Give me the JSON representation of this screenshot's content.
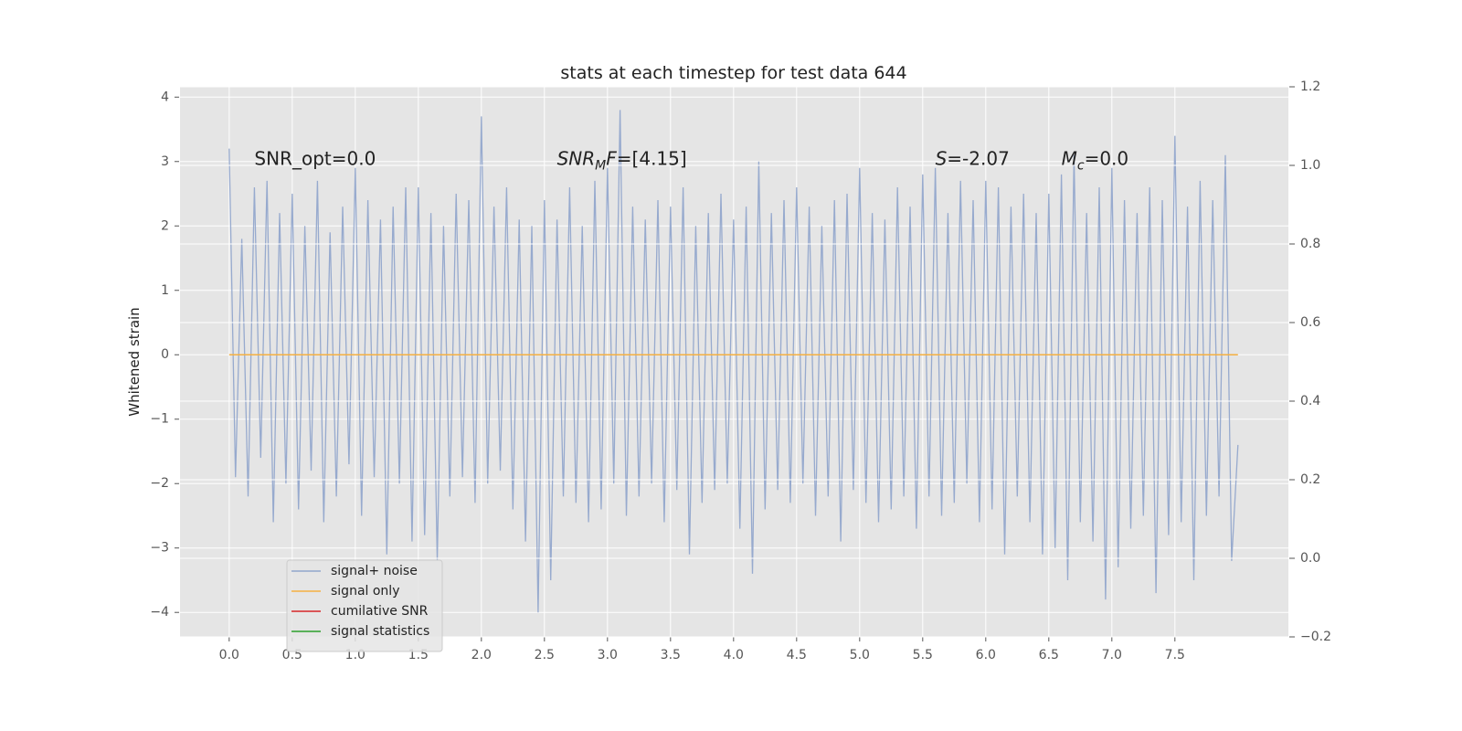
{
  "chart_data": {
    "type": "line",
    "title": "stats at each timestep for test data 644",
    "ylabel": "Whitened strain",
    "xlim": [
      -0.39,
      8.4
    ],
    "ylim": [
      -4.38,
      4.16
    ],
    "y2lim": [
      -0.2,
      1.2
    ],
    "xticks": [
      {
        "value": 0,
        "label": "0.0"
      },
      0.5,
      {
        "value": 1,
        "label": "1.0"
      },
      1.5,
      {
        "value": 2,
        "label": "2.0"
      },
      2.5,
      {
        "value": 3,
        "label": "3.0"
      },
      3.5,
      {
        "value": 4,
        "label": "4.0"
      },
      4.5,
      {
        "value": 5,
        "label": "5.0"
      },
      5.5,
      {
        "value": 6,
        "label": "6.0"
      },
      6.5,
      {
        "value": 7,
        "label": "7.0"
      },
      7.5
    ],
    "yticks": [
      {
        "value": -4,
        "label": "−4"
      },
      {
        "value": -3,
        "label": "−3"
      },
      {
        "value": -2,
        "label": "−2"
      },
      {
        "value": -1,
        "label": "−1"
      },
      0,
      1,
      2,
      3,
      4
    ],
    "y2ticks": [
      {
        "value": -0.2,
        "label": "−0.2"
      },
      {
        "value": 0,
        "label": "0.0"
      },
      0.2,
      0.4,
      0.6,
      0.8,
      {
        "value": 1,
        "label": "1.0"
      },
      1.2
    ],
    "grid": true,
    "legend": "lower left",
    "series": [
      {
        "name": "signal+ noise",
        "color": "#92a6cc",
        "x": [
          0,
          0.05,
          0.1,
          0.15,
          0.2,
          0.25,
          0.3,
          0.35,
          0.4,
          0.45,
          0.5,
          0.55,
          0.6,
          0.65,
          0.7,
          0.75,
          0.8,
          0.85,
          0.9,
          0.95,
          1,
          1.05,
          1.1,
          1.15,
          1.2,
          1.25,
          1.3,
          1.35,
          1.4,
          1.45,
          1.5,
          1.55,
          1.6,
          1.65,
          1.7,
          1.75,
          1.8,
          1.85,
          1.9,
          1.95,
          2,
          2.05,
          2.1,
          2.15,
          2.2,
          2.25,
          2.3,
          2.35,
          2.4,
          2.45,
          2.5,
          2.55,
          2.6,
          2.65,
          2.7,
          2.75,
          2.8,
          2.85,
          2.9,
          2.95,
          3,
          3.05,
          3.1,
          3.15,
          3.2,
          3.25,
          3.3,
          3.35,
          3.4,
          3.45,
          3.5,
          3.55,
          3.6,
          3.65,
          3.7,
          3.75,
          3.8,
          3.85,
          3.9,
          3.95,
          4,
          4.05,
          4.1,
          4.15,
          4.2,
          4.25,
          4.3,
          4.35,
          4.4,
          4.45,
          4.5,
          4.55,
          4.6,
          4.65,
          4.7,
          4.75,
          4.8,
          4.85,
          4.9,
          4.95,
          5,
          5.05,
          5.1,
          5.15,
          5.2,
          5.25,
          5.3,
          5.35,
          5.4,
          5.45,
          5.5,
          5.55,
          5.6,
          5.65,
          5.7,
          5.75,
          5.8,
          5.85,
          5.9,
          5.95,
          6,
          6.05,
          6.1,
          6.15,
          6.2,
          6.25,
          6.3,
          6.35,
          6.4,
          6.45,
          6.5,
          6.55,
          6.6,
          6.65,
          6.7,
          6.75,
          6.8,
          6.85,
          6.9,
          6.95,
          7,
          7.05,
          7.1,
          7.15,
          7.2,
          7.25,
          7.3,
          7.35,
          7.4,
          7.45,
          7.5,
          7.55,
          7.6,
          7.65,
          7.7,
          7.75,
          7.8,
          7.85,
          7.9,
          7.95,
          8
        ],
        "values": [
          3.2,
          -1.9,
          1.8,
          -2.2,
          2.6,
          -1.6,
          2.7,
          -2.6,
          2.2,
          -2.0,
          2.5,
          -2.4,
          2.0,
          -1.8,
          2.7,
          -2.6,
          1.9,
          -2.2,
          2.3,
          -1.7,
          2.9,
          -2.5,
          2.4,
          -1.9,
          2.1,
          -3.1,
          2.3,
          -2.0,
          2.6,
          -2.9,
          2.6,
          -2.8,
          2.2,
          -3.2,
          2.0,
          -2.2,
          2.5,
          -1.9,
          2.4,
          -2.3,
          3.7,
          -2.0,
          2.3,
          -1.8,
          2.6,
          -2.4,
          2.1,
          -2.9,
          2.0,
          -4.0,
          2.4,
          -3.5,
          2.1,
          -2.2,
          2.6,
          -2.3,
          2.0,
          -2.6,
          2.7,
          -2.4,
          2.9,
          -2.0,
          3.8,
          -2.5,
          2.3,
          -2.2,
          2.1,
          -2.0,
          2.4,
          -2.6,
          2.3,
          -2.1,
          2.6,
          -3.1,
          2.0,
          -2.3,
          2.2,
          -2.1,
          2.5,
          -2.0,
          2.1,
          -2.7,
          2.3,
          -3.4,
          3.0,
          -2.4,
          2.2,
          -2.1,
          2.4,
          -2.3,
          2.6,
          -2.0,
          2.3,
          -2.5,
          2.0,
          -2.2,
          2.4,
          -2.9,
          2.5,
          -2.1,
          2.9,
          -2.3,
          2.2,
          -2.6,
          2.1,
          -2.4,
          2.6,
          -2.2,
          2.3,
          -2.7,
          2.8,
          -2.2,
          2.9,
          -2.5,
          2.2,
          -2.3,
          2.7,
          -2.0,
          2.4,
          -2.6,
          2.7,
          -2.4,
          2.6,
          -3.1,
          2.3,
          -2.2,
          2.5,
          -2.6,
          2.2,
          -3.1,
          2.5,
          -3.0,
          2.8,
          -3.5,
          3.1,
          -2.6,
          2.2,
          -2.9,
          2.6,
          -3.8,
          2.9,
          -3.3,
          2.4,
          -2.7,
          2.2,
          -2.5,
          2.6,
          -3.7,
          2.4,
          -2.8,
          3.4,
          -2.6,
          2.3,
          -3.5,
          2.7,
          -2.5,
          2.4,
          -2.2,
          3.1,
          -3.2,
          -1.4
        ]
      },
      {
        "name": "signal only",
        "color": "#f5b041",
        "x": [
          0,
          8
        ],
        "values": [
          0,
          0
        ]
      },
      {
        "name": "cumilative SNR",
        "color": "#d62728",
        "x": [],
        "values": []
      },
      {
        "name": "signal statistics",
        "color": "#2ca02c",
        "x": [],
        "values": []
      }
    ],
    "annotations": [
      {
        "x": 0.2,
        "y": 2.95,
        "segments": [
          {
            "text": "SNR_opt=0.0"
          }
        ]
      },
      {
        "x": 2.6,
        "y": 2.95,
        "segments": [
          {
            "text": "SNR",
            "style": "italic"
          },
          {
            "text": "M",
            "style": "italic-sub"
          },
          {
            "text": "F",
            "style": "italic"
          },
          {
            "text": "=[4.15]"
          }
        ]
      },
      {
        "x": 5.6,
        "y": 2.95,
        "segments": [
          {
            "text": "S",
            "style": "italic"
          },
          {
            "text": "=-2.07"
          }
        ]
      },
      {
        "x": 6.6,
        "y": 2.95,
        "segments": [
          {
            "text": "M",
            "style": "italic"
          },
          {
            "text": "c",
            "style": "italic-sub"
          },
          {
            "text": "=0.0"
          }
        ]
      }
    ]
  }
}
